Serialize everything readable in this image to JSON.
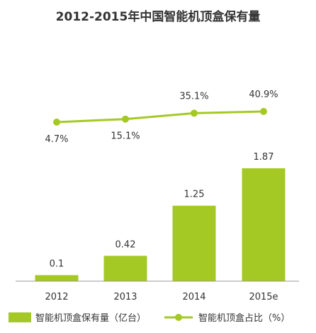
{
  "chart_data": {
    "type": "bar",
    "title": "2012-2015年中国智能机顶盒保有量",
    "categories": [
      "2012",
      "2013",
      "2014",
      "2015e"
    ],
    "series": [
      {
        "name": "智能机顶盒保有量（亿台）",
        "kind": "bar",
        "values": [
          0.1,
          0.42,
          1.25,
          1.87
        ],
        "labels": [
          "0.1",
          "0.42",
          "1.25",
          "1.87"
        ]
      },
      {
        "name": "智能机顶盒占比（%）",
        "kind": "line",
        "values": [
          4.7,
          15.1,
          35.1,
          40.9
        ],
        "labels": [
          "4.7%",
          "15.1%",
          "35.1%",
          "40.9%"
        ]
      }
    ],
    "xlabel": "",
    "ylabel": "",
    "grid": false,
    "legend_position": "bottom",
    "colors": {
      "bar": "#a5c924",
      "line": "#a5c924",
      "text": "#333333",
      "axis": "#999999"
    }
  }
}
